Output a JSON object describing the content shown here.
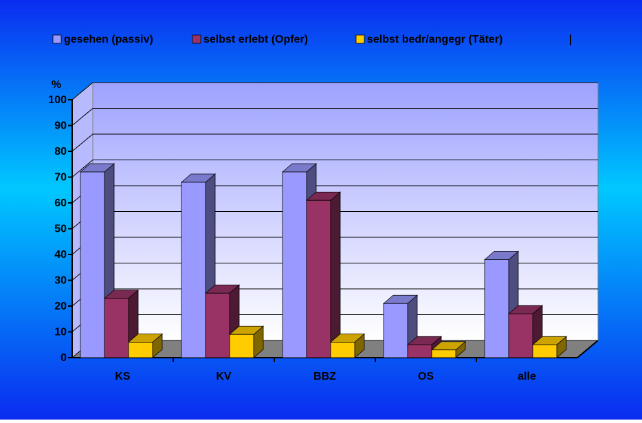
{
  "chart_data": {
    "type": "bar3d",
    "y_label": "%",
    "annotation": "|",
    "categories": [
      "KS",
      "KV",
      "BBZ",
      "OS",
      "alle"
    ],
    "series": [
      {
        "name": "gesehen (passiv)",
        "color": "#9999ff",
        "values": [
          72,
          68,
          72,
          21,
          38
        ]
      },
      {
        "name": "selbst erlebt (Opfer)",
        "color": "#993366",
        "values": [
          23,
          25,
          61,
          5,
          17
        ]
      },
      {
        "name": "selbst bedr/angegr (Täter)",
        "color": "#ffcc00",
        "values": [
          6,
          9,
          6,
          3,
          5
        ]
      }
    ],
    "ylim": [
      0,
      100
    ],
    "yticks": [
      0,
      10,
      20,
      30,
      40,
      50,
      60,
      70,
      80,
      90,
      100
    ],
    "grid": true
  }
}
